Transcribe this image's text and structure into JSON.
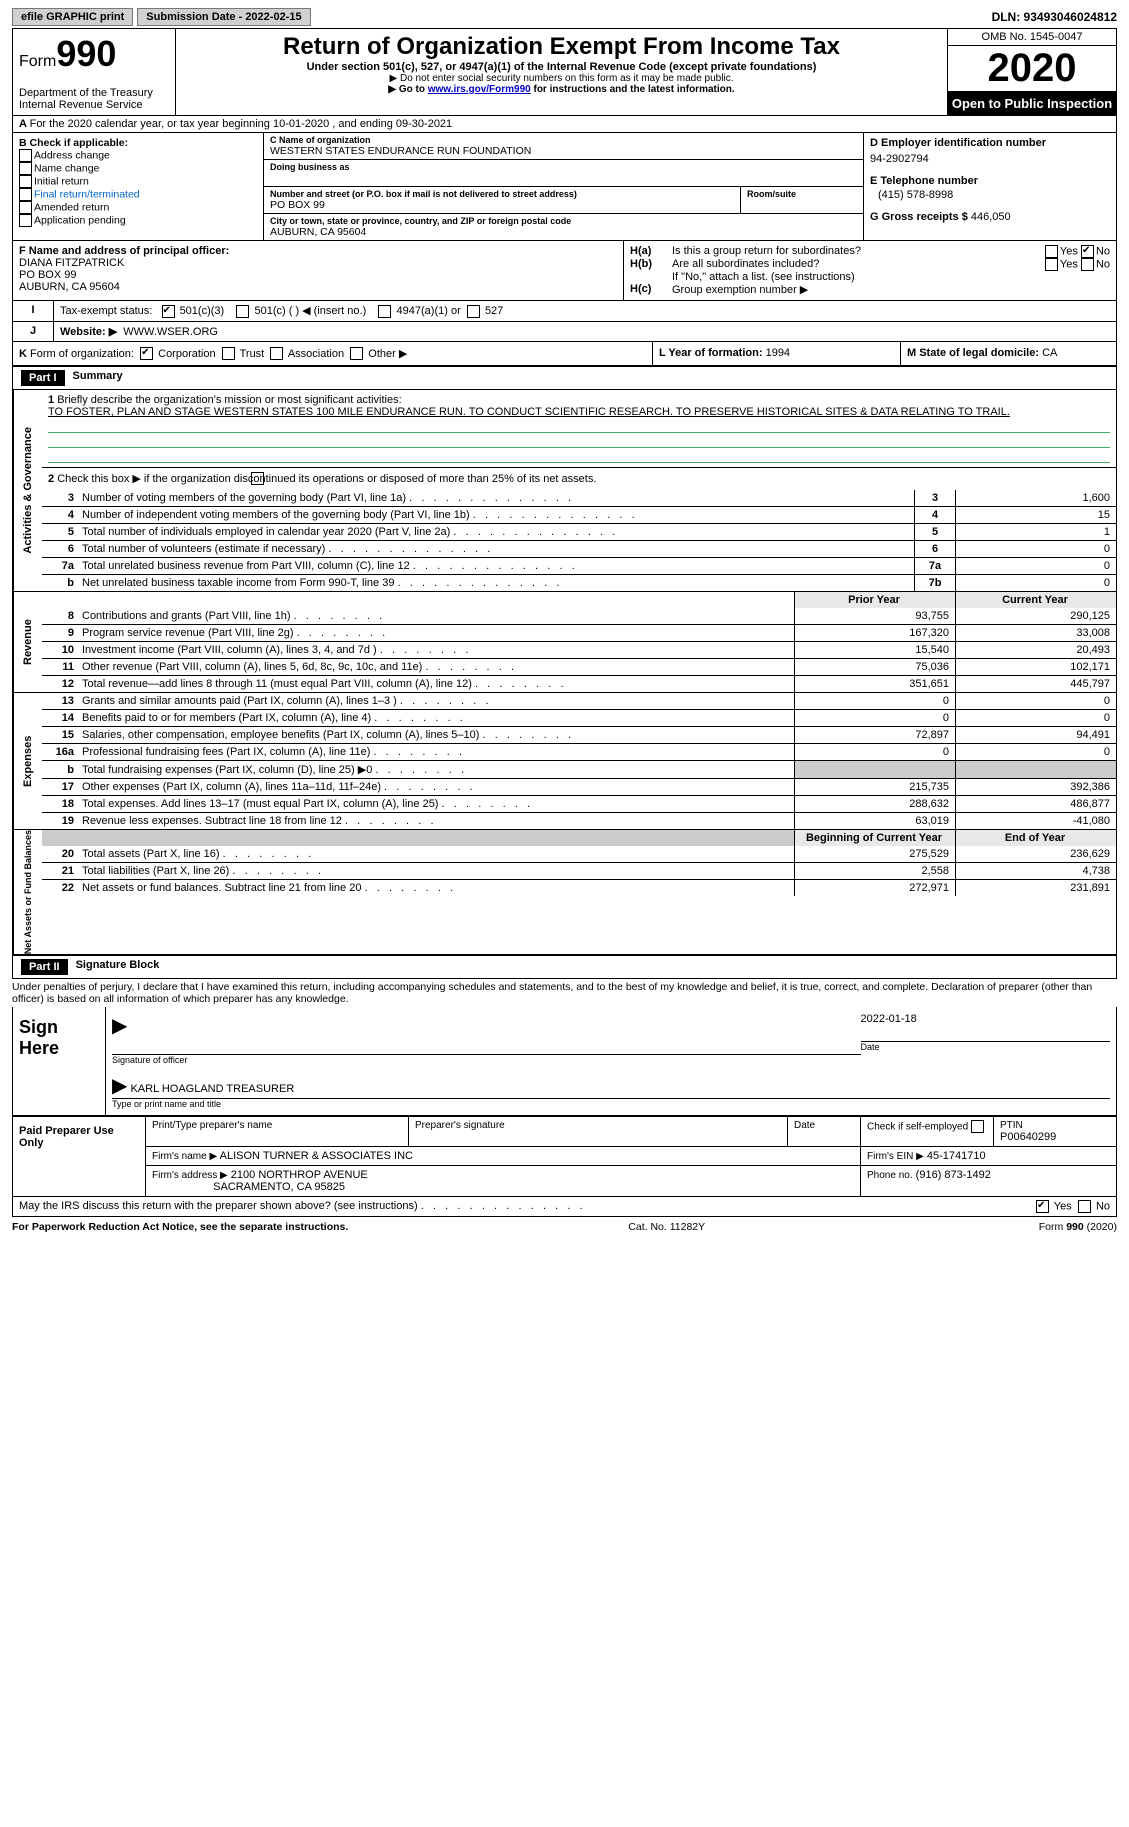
{
  "topbar": {
    "efile": "efile GRAPHIC print",
    "sub_label": "Submission Date - 2022-02-15",
    "dln": "DLN: 93493046024812"
  },
  "header": {
    "form_word": "Form",
    "form_num": "990",
    "dept": "Department of the Treasury",
    "irs": "Internal Revenue Service",
    "title": "Return of Organization Exempt From Income Tax",
    "sub1": "Under section 501(c), 527, or 4947(a)(1) of the Internal Revenue Code (except private foundations)",
    "sub2": "▶ Do not enter social security numbers on this form as it may be made public.",
    "sub3a": "▶ Go to ",
    "sub3link": "www.irs.gov/Form990",
    "sub3b": " for instructions and the latest information.",
    "omb": "OMB No. 1545-0047",
    "year": "2020",
    "open": "Open to Public Inspection"
  },
  "line_a": "For the 2020 calendar year, or tax year beginning 10-01-2020     , and ending 09-30-2021",
  "boxB": {
    "hdr": "B Check if applicable:",
    "items": [
      "Address change",
      "Name change",
      "Initial return",
      "Final return/terminated",
      "Amended return",
      "Application pending"
    ]
  },
  "boxC": {
    "name_lbl": "C Name of organization",
    "name": "WESTERN STATES ENDURANCE RUN FOUNDATION",
    "dba_lbl": "Doing business as",
    "dba": "",
    "addr_lbl": "Number and street (or P.O. box if mail is not delivered to street address)",
    "room_lbl": "Room/suite",
    "addr": "PO BOX 99",
    "city_lbl": "City or town, state or province, country, and ZIP or foreign postal code",
    "city": "AUBURN, CA  95604"
  },
  "boxD": {
    "lbl": "D Employer identification number",
    "val": "94-2902794"
  },
  "boxE": {
    "lbl": "E Telephone number",
    "val": "(415) 578-8998"
  },
  "boxG": {
    "lbl": "G Gross receipts $",
    "val": "446,050"
  },
  "boxF": {
    "lbl": "F  Name and address of principal officer:",
    "l1": "DIANA FITZPATRICK",
    "l2": "PO BOX 99",
    "l3": "AUBURN, CA  95604"
  },
  "boxH": {
    "a": "Is this a group return for subordinates?",
    "b": "Are all subordinates included?",
    "bnote": "If \"No,\" attach a list. (see instructions)",
    "c": "Group exemption number ▶",
    "yes": "Yes",
    "no": "No"
  },
  "lineI": {
    "lbl": "Tax-exempt status:",
    "o1": "501(c)(3)",
    "o2": "501(c) (   ) ◀ (insert no.)",
    "o3": "4947(a)(1) or",
    "o4": "527"
  },
  "lineJ": {
    "lbl": "Website: ▶",
    "val": "WWW.WSER.ORG"
  },
  "lineK": {
    "lbl": "Form of organization:",
    "o1": "Corporation",
    "o2": "Trust",
    "o3": "Association",
    "o4": "Other ▶"
  },
  "boxL": {
    "lbl": "L Year of formation:",
    "val": "1994"
  },
  "boxM": {
    "lbl": "M State of legal domicile:",
    "val": "CA"
  },
  "part1": {
    "tag": "Part I",
    "title": "Summary",
    "l1lbl": "Briefly describe the organization's mission or most significant activities:",
    "l1": "TO FOSTER, PLAN AND STAGE WESTERN STATES 100 MILE ENDURANCE RUN. TO CONDUCT SCIENTIFIC RESEARCH. TO PRESERVE HISTORICAL SITES & DATA RELATING TO TRAIL.",
    "l2": "Check this box ▶        if the organization discontinued its operations or disposed of more than 25% of its net assets.",
    "rows_gov": [
      {
        "n": "3",
        "d": "Number of voting members of the governing body (Part VI, line 1a)",
        "b": "3",
        "v": "1,600"
      },
      {
        "n": "4",
        "d": "Number of independent voting members of the governing body (Part VI, line 1b)",
        "b": "4",
        "v": "15"
      },
      {
        "n": "5",
        "d": "Total number of individuals employed in calendar year 2020 (Part V, line 2a)",
        "b": "5",
        "v": "1"
      },
      {
        "n": "6",
        "d": "Total number of volunteers (estimate if necessary)",
        "b": "6",
        "v": "0"
      },
      {
        "n": "7a",
        "d": "Total unrelated business revenue from Part VIII, column (C), line 12",
        "b": "7a",
        "v": "0"
      },
      {
        "n": "b",
        "d": "Net unrelated business taxable income from Form 990-T, line 39",
        "b": "7b",
        "v": "0"
      }
    ],
    "hdr_py": "Prior Year",
    "hdr_cy": "Current Year",
    "rows_rev": [
      {
        "n": "8",
        "d": "Contributions and grants (Part VIII, line 1h)",
        "py": "93,755",
        "cy": "290,125"
      },
      {
        "n": "9",
        "d": "Program service revenue (Part VIII, line 2g)",
        "py": "167,320",
        "cy": "33,008"
      },
      {
        "n": "10",
        "d": "Investment income (Part VIII, column (A), lines 3, 4, and 7d )",
        "py": "15,540",
        "cy": "20,493"
      },
      {
        "n": "11",
        "d": "Other revenue (Part VIII, column (A), lines 5, 6d, 8c, 9c, 10c, and 11e)",
        "py": "75,036",
        "cy": "102,171"
      },
      {
        "n": "12",
        "d": "Total revenue—add lines 8 through 11 (must equal Part VIII, column (A), line 12)",
        "py": "351,651",
        "cy": "445,797"
      }
    ],
    "rows_exp": [
      {
        "n": "13",
        "d": "Grants and similar amounts paid (Part IX, column (A), lines 1–3 )",
        "py": "0",
        "cy": "0"
      },
      {
        "n": "14",
        "d": "Benefits paid to or for members (Part IX, column (A), line 4)",
        "py": "0",
        "cy": "0"
      },
      {
        "n": "15",
        "d": "Salaries, other compensation, employee benefits (Part IX, column (A), lines 5–10)",
        "py": "72,897",
        "cy": "94,491"
      },
      {
        "n": "16a",
        "d": "Professional fundraising fees (Part IX, column (A), line 11e)",
        "py": "0",
        "cy": "0"
      },
      {
        "n": "b",
        "d": "Total fundraising expenses (Part IX, column (D), line 25) ▶0",
        "py": "",
        "cy": "",
        "grey": true,
        "nb": true
      },
      {
        "n": "17",
        "d": "Other expenses (Part IX, column (A), lines 11a–11d, 11f–24e)",
        "py": "215,735",
        "cy": "392,386"
      },
      {
        "n": "18",
        "d": "Total expenses. Add lines 13–17 (must equal Part IX, column (A), line 25)",
        "py": "288,632",
        "cy": "486,877"
      },
      {
        "n": "19",
        "d": "Revenue less expenses. Subtract line 18 from line 12",
        "py": "63,019",
        "cy": "-41,080"
      }
    ],
    "hdr_bcy": "Beginning of Current Year",
    "hdr_eoy": "End of Year",
    "rows_na": [
      {
        "n": "20",
        "d": "Total assets (Part X, line 16)",
        "py": "275,529",
        "cy": "236,629"
      },
      {
        "n": "21",
        "d": "Total liabilities (Part X, line 26)",
        "py": "2,558",
        "cy": "4,738"
      },
      {
        "n": "22",
        "d": "Net assets or fund balances. Subtract line 21 from line 20",
        "py": "272,971",
        "cy": "231,891"
      }
    ]
  },
  "part2": {
    "tag": "Part II",
    "title": "Signature Block",
    "penalty": "Under penalties of perjury, I declare that I have examined this return, including accompanying schedules and statements, and to the best of my knowledge and belief, it is true, correct, and complete. Declaration of preparer (other than officer) is based on all information of which preparer has any knowledge.",
    "sign_here": "Sign Here",
    "sig_officer": "Signature of officer",
    "date_lbl": "Date",
    "date_val": "2022-01-18",
    "type_name": "KARL HOAGLAND  TREASURER",
    "type_lbl": "Type or print name and title",
    "paid": "Paid Preparer Use Only",
    "pp_name_lbl": "Print/Type preparer's name",
    "pp_sig_lbl": "Preparer's signature",
    "pp_check": "Check         if self-employed",
    "ptin_lbl": "PTIN",
    "ptin": "P00640299",
    "firm_name_lbl": "Firm's name     ▶",
    "firm_name": "ALISON TURNER & ASSOCIATES INC",
    "firm_ein_lbl": "Firm's EIN ▶",
    "firm_ein": "45-1741710",
    "firm_addr_lbl": "Firm's address ▶",
    "firm_addr1": "2100 NORTHROP AVENUE",
    "firm_addr2": "SACRAMENTO, CA  95825",
    "phone_lbl": "Phone no.",
    "phone": "(916) 873-1492",
    "discuss": "May the IRS discuss this return with the preparer shown above? (see instructions)"
  },
  "footer": {
    "l": "For Paperwork Reduction Act Notice, see the separate instructions.",
    "m": "Cat. No. 11282Y",
    "r": "Form 990 (2020)"
  },
  "tabs": {
    "gov": "Activities & Governance",
    "rev": "Revenue",
    "exp": "Expenses",
    "na": "Net Assets or Fund Balances"
  }
}
